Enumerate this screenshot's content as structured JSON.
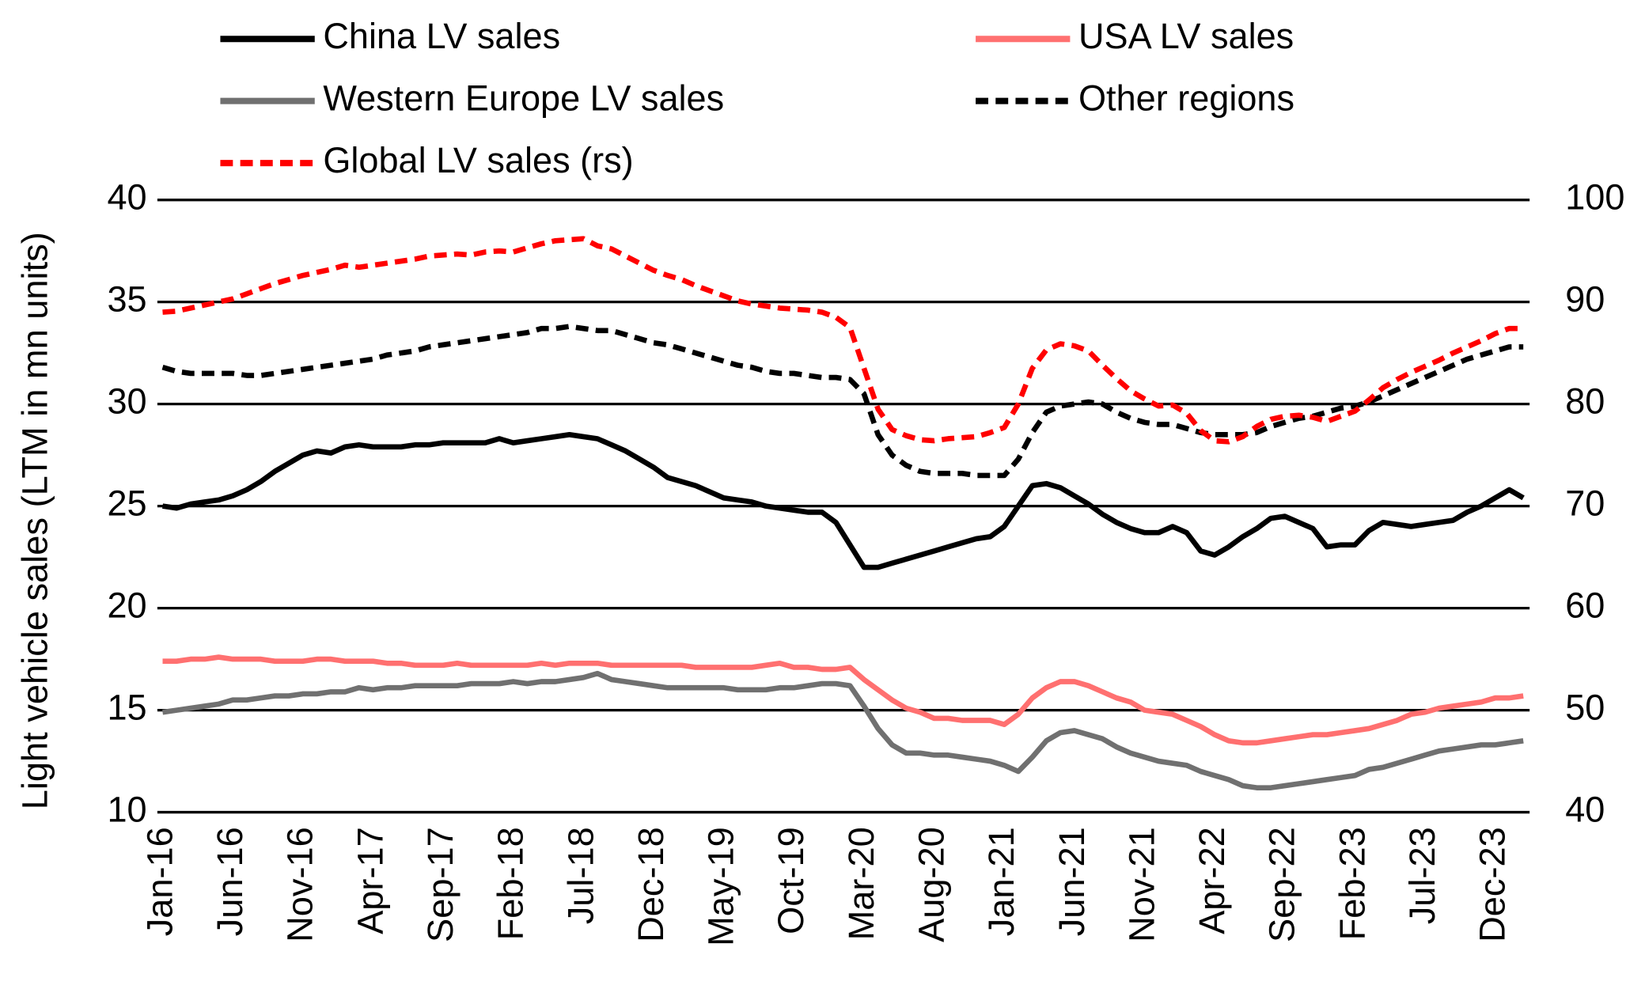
{
  "chart_data": {
    "type": "line",
    "ylabel": "Light vehicle sales (LTM in mn units)",
    "categories": [
      "Jan-16",
      null,
      null,
      null,
      null,
      "Jun-16",
      null,
      null,
      null,
      null,
      "Nov-16",
      null,
      null,
      null,
      null,
      "Apr-17",
      null,
      null,
      null,
      null,
      "Sep-17",
      null,
      null,
      null,
      null,
      "Feb-18",
      null,
      null,
      null,
      null,
      "Jul-18",
      null,
      null,
      null,
      null,
      "Dec-18",
      null,
      null,
      null,
      null,
      "May-19",
      null,
      null,
      null,
      null,
      "Oct-19",
      null,
      null,
      null,
      null,
      "Mar-20",
      null,
      null,
      null,
      null,
      "Aug-20",
      null,
      null,
      null,
      null,
      "Jan-21",
      null,
      null,
      null,
      null,
      "Jun-21",
      null,
      null,
      null,
      null,
      "Nov-21",
      null,
      null,
      null,
      null,
      "Apr-22",
      null,
      null,
      null,
      null,
      "Sep-22",
      null,
      null,
      null,
      null,
      "Feb-23",
      null,
      null,
      null,
      null,
      "Jul-23",
      null,
      null,
      null,
      null,
      "Dec-23",
      null,
      null
    ],
    "ylim": [
      10,
      40
    ],
    "yticks": [
      10,
      15,
      20,
      25,
      30,
      35,
      40
    ],
    "y2lim": [
      40,
      100
    ],
    "y2ticks": [
      40,
      50,
      60,
      70,
      80,
      90,
      100
    ],
    "grid": true,
    "series": [
      {
        "name": "China LV sales",
        "color": "#000000",
        "dashed": false,
        "values": [
          25.0,
          24.9,
          25.1,
          25.2,
          25.3,
          25.5,
          25.8,
          26.2,
          26.7,
          27.1,
          27.5,
          27.7,
          27.6,
          27.9,
          28.0,
          27.9,
          27.9,
          27.9,
          28.0,
          28.0,
          28.1,
          28.1,
          28.1,
          28.1,
          28.3,
          28.1,
          28.2,
          28.3,
          28.4,
          28.5,
          28.4,
          28.3,
          28.0,
          27.7,
          27.3,
          26.9,
          26.4,
          26.2,
          26.0,
          25.7,
          25.4,
          25.3,
          25.2,
          25.0,
          24.9,
          24.8,
          24.7,
          24.7,
          24.2,
          23.1,
          22.0,
          22.0,
          22.2,
          22.4,
          22.6,
          22.8,
          23.0,
          23.2,
          23.4,
          23.5,
          24.0,
          25.0,
          26.0,
          26.1,
          25.9,
          25.5,
          25.1,
          24.6,
          24.2,
          23.9,
          23.7,
          23.7,
          24.0,
          23.7,
          22.8,
          22.6,
          23.0,
          23.5,
          23.9,
          24.4,
          24.5,
          24.2,
          23.9,
          23.0,
          23.1,
          23.1,
          23.8,
          24.2,
          24.1,
          24.0,
          24.1,
          24.2,
          24.3,
          24.7,
          25.0,
          25.4,
          25.8,
          25.4
        ]
      },
      {
        "name": "USA LV sales",
        "color": "#ff7070",
        "dashed": false,
        "values": [
          17.4,
          17.4,
          17.5,
          17.5,
          17.6,
          17.5,
          17.5,
          17.5,
          17.4,
          17.4,
          17.4,
          17.5,
          17.5,
          17.4,
          17.4,
          17.4,
          17.3,
          17.3,
          17.2,
          17.2,
          17.2,
          17.3,
          17.2,
          17.2,
          17.2,
          17.2,
          17.2,
          17.3,
          17.2,
          17.3,
          17.3,
          17.3,
          17.2,
          17.2,
          17.2,
          17.2,
          17.2,
          17.2,
          17.1,
          17.1,
          17.1,
          17.1,
          17.1,
          17.2,
          17.3,
          17.1,
          17.1,
          17.0,
          17.0,
          17.1,
          16.5,
          16.0,
          15.5,
          15.1,
          14.9,
          14.6,
          14.6,
          14.5,
          14.5,
          14.5,
          14.3,
          14.8,
          15.6,
          16.1,
          16.4,
          16.4,
          16.2,
          15.9,
          15.6,
          15.4,
          15.0,
          14.9,
          14.8,
          14.5,
          14.2,
          13.8,
          13.5,
          13.4,
          13.4,
          13.5,
          13.6,
          13.7,
          13.8,
          13.8,
          13.9,
          14.0,
          14.1,
          14.3,
          14.5,
          14.8,
          14.9,
          15.1,
          15.2,
          15.3,
          15.4,
          15.6,
          15.6,
          15.7
        ]
      },
      {
        "name": "Western Europe LV sales",
        "color": "#707070",
        "dashed": false,
        "values": [
          14.9,
          15.0,
          15.1,
          15.2,
          15.3,
          15.5,
          15.5,
          15.6,
          15.7,
          15.7,
          15.8,
          15.8,
          15.9,
          15.9,
          16.1,
          16.0,
          16.1,
          16.1,
          16.2,
          16.2,
          16.2,
          16.2,
          16.3,
          16.3,
          16.3,
          16.4,
          16.3,
          16.4,
          16.4,
          16.5,
          16.6,
          16.8,
          16.5,
          16.4,
          16.3,
          16.2,
          16.1,
          16.1,
          16.1,
          16.1,
          16.1,
          16.0,
          16.0,
          16.0,
          16.1,
          16.1,
          16.2,
          16.3,
          16.3,
          16.2,
          15.2,
          14.1,
          13.3,
          12.9,
          12.9,
          12.8,
          12.8,
          12.7,
          12.6,
          12.5,
          12.3,
          12.0,
          12.7,
          13.5,
          13.9,
          14.0,
          13.8,
          13.6,
          13.2,
          12.9,
          12.7,
          12.5,
          12.4,
          12.3,
          12.0,
          11.8,
          11.6,
          11.3,
          11.2,
          11.2,
          11.3,
          11.4,
          11.5,
          11.6,
          11.7,
          11.8,
          12.1,
          12.2,
          12.4,
          12.6,
          12.8,
          13.0,
          13.1,
          13.2,
          13.3,
          13.3,
          13.4,
          13.5
        ]
      },
      {
        "name": "Other regions",
        "color": "#000000",
        "dashed": true,
        "values": [
          31.8,
          31.6,
          31.5,
          31.5,
          31.5,
          31.5,
          31.4,
          31.4,
          31.5,
          31.6,
          31.7,
          31.8,
          31.9,
          32.0,
          32.1,
          32.2,
          32.4,
          32.5,
          32.6,
          32.8,
          32.9,
          33.0,
          33.1,
          33.2,
          33.3,
          33.4,
          33.5,
          33.7,
          33.7,
          33.8,
          33.7,
          33.6,
          33.6,
          33.4,
          33.2,
          33.0,
          32.9,
          32.7,
          32.5,
          32.3,
          32.1,
          31.9,
          31.8,
          31.6,
          31.5,
          31.5,
          31.4,
          31.3,
          31.3,
          31.2,
          30.5,
          28.5,
          27.5,
          27.0,
          26.7,
          26.6,
          26.6,
          26.6,
          26.5,
          26.5,
          26.5,
          27.3,
          28.6,
          29.6,
          29.9,
          30.0,
          30.1,
          30.0,
          29.6,
          29.3,
          29.1,
          29.0,
          29.0,
          28.8,
          28.6,
          28.5,
          28.5,
          28.5,
          28.6,
          28.9,
          29.1,
          29.3,
          29.4,
          29.6,
          29.8,
          29.9,
          30.1,
          30.4,
          30.7,
          31.0,
          31.3,
          31.6,
          31.9,
          32.2,
          32.4,
          32.6,
          32.8,
          32.8
        ]
      },
      {
        "name": "Global LV sales (rs)",
        "color": "#ff0000",
        "dashed": true,
        "axis": "y2",
        "values": [
          89.0,
          89.1,
          89.4,
          89.7,
          90.0,
          90.3,
          90.8,
          91.3,
          91.8,
          92.2,
          92.6,
          92.9,
          93.2,
          93.6,
          93.4,
          93.6,
          93.8,
          94.0,
          94.2,
          94.5,
          94.6,
          94.7,
          94.6,
          94.9,
          95.0,
          94.9,
          95.3,
          95.7,
          96.0,
          96.1,
          96.2,
          95.5,
          95.2,
          94.5,
          93.8,
          93.1,
          92.6,
          92.2,
          91.6,
          91.1,
          90.6,
          90.1,
          89.8,
          89.6,
          89.4,
          89.3,
          89.2,
          89.0,
          88.5,
          87.5,
          83.5,
          79.5,
          77.5,
          76.9,
          76.5,
          76.4,
          76.6,
          76.7,
          76.8,
          77.2,
          77.7,
          80.0,
          83.5,
          85.3,
          85.9,
          85.7,
          85.2,
          83.8,
          82.5,
          81.3,
          80.5,
          79.8,
          79.9,
          79.1,
          77.4,
          76.4,
          76.3,
          76.8,
          77.8,
          78.5,
          78.8,
          78.9,
          78.7,
          78.3,
          78.8,
          79.3,
          80.4,
          81.6,
          82.4,
          83.1,
          83.7,
          84.3,
          85.0,
          85.6,
          86.2,
          86.9,
          87.4,
          87.4
        ]
      }
    ]
  }
}
